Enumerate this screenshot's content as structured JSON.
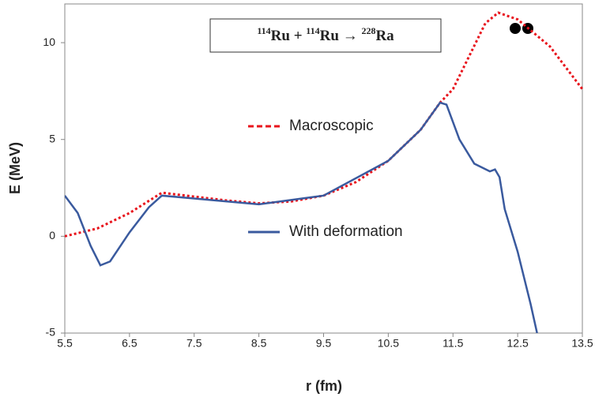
{
  "chart_data": {
    "type": "line",
    "annotation": [
      "114",
      "Ru",
      " + ",
      "114",
      "Ru",
      " → ",
      "228",
      "Ra"
    ],
    "xlabel": "r (fm)",
    "ylabel": "E (MeV)",
    "xlim": [
      5.5,
      13.5
    ],
    "ylim": [
      -5,
      12
    ],
    "xticks": [
      5.5,
      6.5,
      7.5,
      8.5,
      9.5,
      10.5,
      11.5,
      12.5,
      13.5
    ],
    "yticks": [
      -5,
      0,
      5,
      10
    ],
    "series": [
      {
        "name": "Macroscopic",
        "color": "#e8141c",
        "style": "dotted",
        "x": [
          5.5,
          6.0,
          6.5,
          7.0,
          7.5,
          8.0,
          8.5,
          9.0,
          9.5,
          10.0,
          10.5,
          11.0,
          11.3,
          11.5,
          12.0,
          12.2,
          12.5,
          13.0,
          13.5
        ],
        "values": [
          0,
          0.4,
          1.2,
          2.25,
          2.05,
          1.85,
          1.7,
          1.8,
          2.1,
          2.8,
          3.9,
          5.5,
          6.9,
          7.6,
          11.0,
          11.55,
          11.2,
          9.8,
          7.6
        ]
      },
      {
        "name": "With deformation",
        "color": "#3a5a9e",
        "style": "solid",
        "x": [
          5.5,
          5.7,
          5.9,
          6.05,
          6.2,
          6.5,
          6.8,
          7.0,
          7.5,
          8.5,
          9.5,
          10.5,
          11.0,
          11.3,
          11.4,
          11.6,
          11.83,
          11.95,
          12.07,
          12.15,
          12.22,
          12.3,
          12.5,
          12.7,
          12.8
        ],
        "values": [
          2.1,
          1.2,
          -0.5,
          -1.5,
          -1.3,
          0.2,
          1.5,
          2.1,
          1.95,
          1.65,
          2.1,
          3.9,
          5.5,
          6.9,
          6.8,
          5.0,
          3.75,
          3.55,
          3.35,
          3.45,
          3.05,
          1.4,
          -0.8,
          -3.5,
          -5.0
        ]
      }
    ]
  }
}
